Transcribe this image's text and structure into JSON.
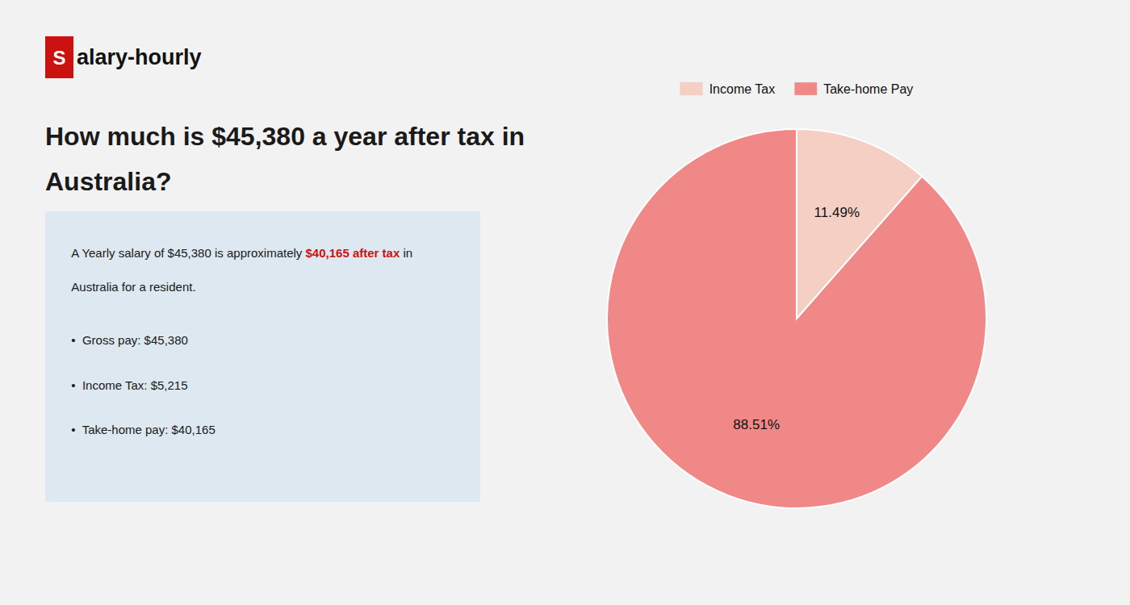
{
  "chart_data": {
    "type": "pie",
    "title": [
      "How much is $45,380 a year after tax in",
      "Australia?"
    ],
    "annotations": [
      {
        "text": "S",
        "color": "#cc1111"
      },
      {
        "text": "alary-hourly"
      },
      {
        "text": "A Yearly salary of $45,380 is approximately "
      },
      {
        "text": "$40,165 after tax",
        "color": "#cc1111"
      },
      {
        "text": " in"
      },
      {
        "text": "Australia for a resident."
      },
      {
        "text": "•  Gross pay: $45,380"
      },
      {
        "text": "•  Income Tax: $5,215"
      },
      {
        "text": "•  Take-home pay: $40,165"
      }
    ],
    "categories": [
      "Income Tax",
      "Take-home Pay"
    ],
    "values": [
      11.49,
      88.51
    ],
    "value_labels": [
      "11.49%",
      "88.51%"
    ],
    "data_labels": true,
    "colors": [
      "#f5cfc4",
      "#f08888"
    ],
    "legend": "top"
  }
}
